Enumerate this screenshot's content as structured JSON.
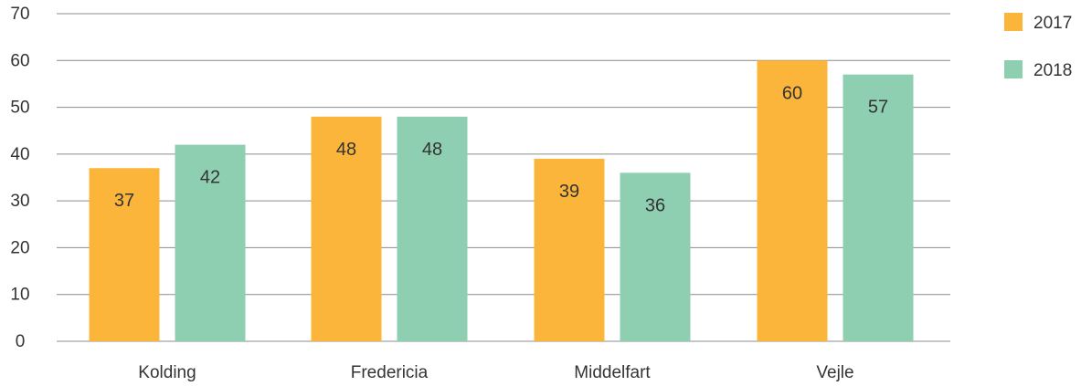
{
  "chart_data": {
    "type": "bar",
    "title": "",
    "xlabel": "",
    "ylabel": "",
    "categories": [
      "Kolding",
      "Fredericia",
      "Middelfart",
      "Vejle"
    ],
    "series": [
      {
        "name": "2017",
        "values": [
          37,
          48,
          39,
          60
        ],
        "color": "#FBB53B"
      },
      {
        "name": "2018",
        "values": [
          42,
          48,
          36,
          57
        ],
        "color": "#8FCFB1"
      }
    ],
    "ylim": [
      0,
      70
    ],
    "yticks": [
      "0",
      "10",
      "20",
      "30",
      "40",
      "50",
      "60",
      "70"
    ],
    "grid": true,
    "legend": "top-right",
    "data_labels": true
  }
}
